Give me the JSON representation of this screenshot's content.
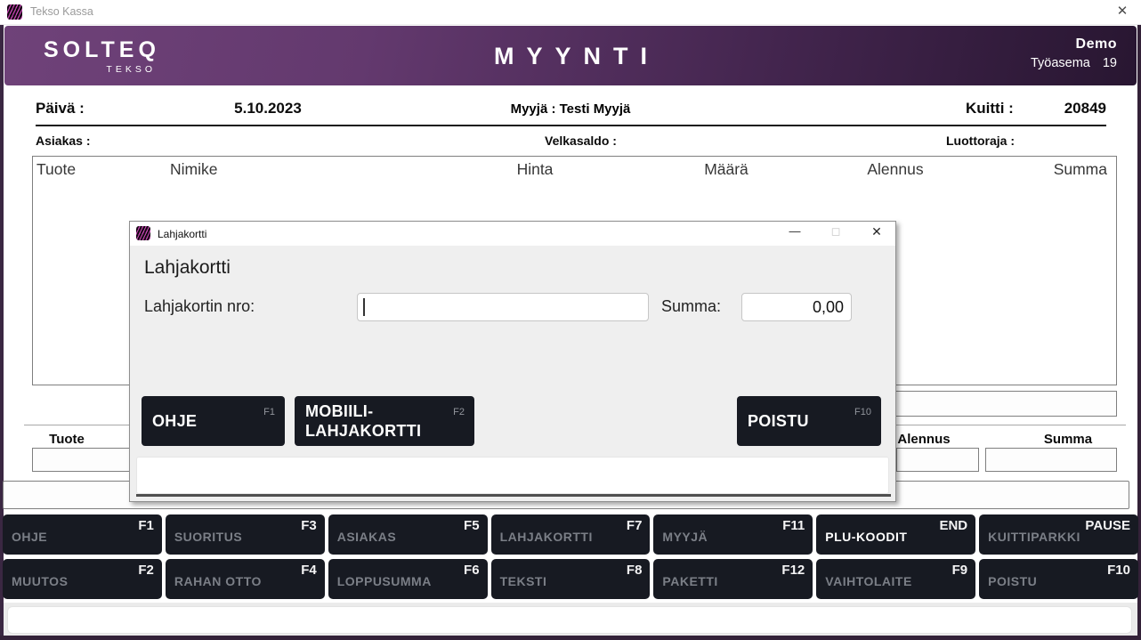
{
  "colors": {
    "header_gradient_start": "#6f4279",
    "header_gradient_end": "#281631",
    "window_border": "#3a2742",
    "button_bg": "#171a22",
    "button_label_gray": "#7b7f87",
    "button_label_active": "#ffffff",
    "app_icon_accent": "#c043ae"
  },
  "titlebar": {
    "app_title": "Tekso Kassa",
    "close_glyph": "✕"
  },
  "header": {
    "logo_primary": "SOLTEQ",
    "logo_secondary": "TEKSO",
    "page_title": "MYYNTI",
    "environment": "Demo",
    "workstation_label": "Työasema",
    "workstation_value": "19"
  },
  "receipt_info": {
    "date_label": "Päivä :",
    "date_value": "5.10.2023",
    "seller_label": "Myyjä :",
    "seller_value": "Testi Myyjä",
    "receipt_label": "Kuitti :",
    "receipt_value": "20849",
    "customer_label": "Asiakas :",
    "debt_label": "Velkasaldo :",
    "credit_label": "Luottoraja :"
  },
  "items_table": {
    "columns": [
      "Tuote",
      "Nimike",
      "Hinta",
      "Määrä",
      "Alennus",
      "Summa"
    ],
    "rows": []
  },
  "entry": {
    "product_label": "Tuote",
    "discount_label": "Alennus",
    "total_label": "Summa",
    "product_value": "",
    "discount_value": "",
    "total_value": "",
    "scan_value": "",
    "message_value": ""
  },
  "dialog": {
    "window_title": "Lahjakortti",
    "minimize_glyph": "—",
    "maximize_glyph": "◻",
    "close_glyph": "✕",
    "heading": "Lahjakortti",
    "card_number_label": "Lahjakortin nro:",
    "card_number_value": "",
    "sum_label": "Summa:",
    "sum_value": "0,00",
    "buttons": [
      {
        "label": "OHJE",
        "fkey": "F1"
      },
      {
        "label": "MOBIILI-LAHJAKORTTI",
        "fkey": "F2"
      },
      {
        "label": "POISTU",
        "fkey": "F10"
      }
    ]
  },
  "function_keys": {
    "row1": [
      {
        "label": "OHJE",
        "fkey": "F1"
      },
      {
        "label": "SUORITUS",
        "fkey": "F3"
      },
      {
        "label": "ASIAKAS",
        "fkey": "F5"
      },
      {
        "label": "LAHJAKORTTI",
        "fkey": "F7"
      },
      {
        "label": "MYYJÄ",
        "fkey": "F11"
      },
      {
        "label": "PLU-KOODIT",
        "fkey": "END"
      },
      {
        "label": "KUITTIPARKKI",
        "fkey": "PAUSE"
      }
    ],
    "row2": [
      {
        "label": "MUUTOS",
        "fkey": "F2"
      },
      {
        "label": "RAHAN OTTO",
        "fkey": "F4"
      },
      {
        "label": "LOPPUSUMMA",
        "fkey": "F6"
      },
      {
        "label": "TEKSTI",
        "fkey": "F8"
      },
      {
        "label": "PAKETTI",
        "fkey": "F12"
      },
      {
        "label": "VAIHTOLAITE",
        "fkey": "F9"
      },
      {
        "label": "POISTU",
        "fkey": "F10"
      }
    ]
  }
}
